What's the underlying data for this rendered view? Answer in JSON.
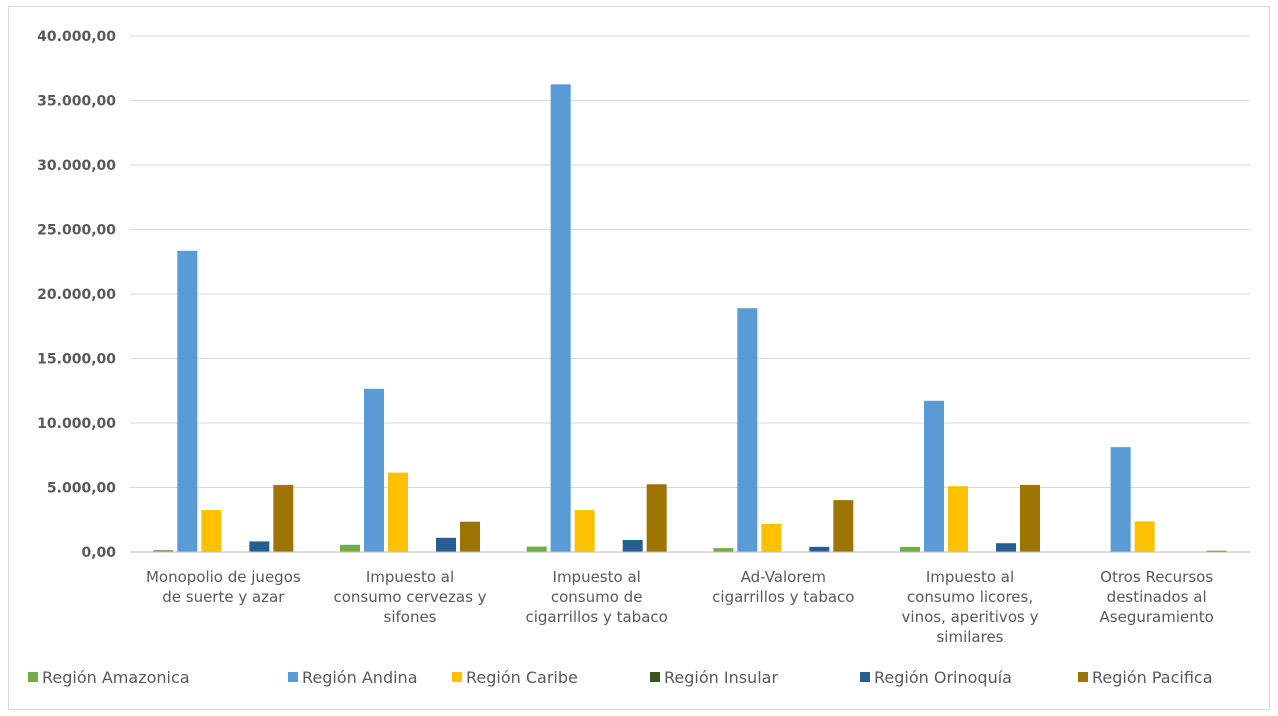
{
  "chart_data": {
    "type": "bar",
    "categories": [
      [
        "Monopolio de juegos",
        "de suerte y azar"
      ],
      [
        "Impuesto al",
        "consumo cervezas y",
        "sifones"
      ],
      [
        "Impuesto al",
        "consumo de",
        "cigarrillos y tabaco"
      ],
      [
        "Ad-Valorem",
        "cigarrillos y tabaco"
      ],
      [
        "Impuesto al",
        "consumo licores,",
        "vinos, aperitivos y",
        "similares"
      ],
      [
        "Otros Recursos",
        "destinados al",
        "Aseguramiento"
      ]
    ],
    "series": [
      {
        "name": "Región Amazonica",
        "color": "#70ad47",
        "values": [
          150,
          560,
          420,
          300,
          400,
          40
        ]
      },
      {
        "name": "Región Andina",
        "color": "#5b9bd5",
        "values": [
          23350,
          12650,
          36250,
          18900,
          11720,
          8130
        ]
      },
      {
        "name": "Región Caribe",
        "color": "#ffc000",
        "values": [
          3250,
          6150,
          3250,
          2180,
          5100,
          2370
        ]
      },
      {
        "name": "Región Insular",
        "color": "#375623",
        "values": [
          40,
          30,
          20,
          25,
          30,
          0
        ]
      },
      {
        "name": "Región Orinoquía",
        "color": "#255e91",
        "values": [
          820,
          1100,
          930,
          400,
          680,
          0
        ]
      },
      {
        "name": "Región Pacifica",
        "color": "#9e7400",
        "values": [
          5200,
          2350,
          5250,
          4020,
          5200,
          100
        ]
      }
    ],
    "yticks": [
      "0,00",
      "5.000,00",
      "10.000,00",
      "15.000,00",
      "20.000,00",
      "25.000,00",
      "30.000,00",
      "35.000,00",
      "40.000,00"
    ],
    "ylim": [
      0,
      40000
    ],
    "grid": true,
    "legend_position": "bottom"
  }
}
